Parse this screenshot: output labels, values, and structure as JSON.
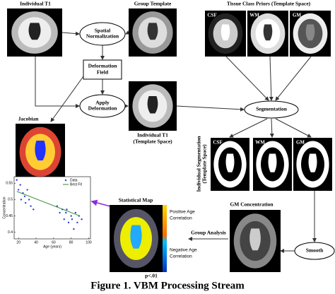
{
  "labels": {
    "individual_t1": "Individual T1",
    "group_template": "Group Template",
    "tissue_priors": "Tissue Class Priors (Template Space)",
    "spatial_normalization": [
      "Spatial",
      "Normalization"
    ],
    "deformation_field": [
      "Deformation",
      "Field"
    ],
    "apply_deformation": [
      "Apply",
      "Deformation"
    ],
    "jacobian": "Jacobian",
    "individual_t1_template": [
      "Individual T1",
      "(Template Space)"
    ],
    "segmentation": "Segmentation",
    "individual_segmentation": [
      "Individual Segmentation",
      "(Template Space)"
    ],
    "statistical_map": "Statistical Map",
    "positive": [
      "Positive Age",
      "Correlation"
    ],
    "negative": [
      "Negative Age",
      "Correlation"
    ],
    "p_value": "p<.01",
    "gm_concentration": "GM Concentration",
    "group_analysis": "Group Analysis",
    "smooth": "Smooth",
    "priors_classes": [
      "CSF",
      "WM",
      "GM"
    ],
    "seg_classes": [
      "CSF",
      "WM",
      "GM"
    ]
  },
  "caption": "Figure 1. VBM Processing Stream",
  "scatter": {
    "type": "scatter",
    "x_label": "Age (years)",
    "y_label": "Concentration",
    "xlim": [
      15,
      102
    ],
    "ylim": [
      0.38,
      0.57
    ],
    "xticks": [
      20,
      40,
      60,
      80,
      100
    ],
    "yticks": [
      0.4,
      0.45,
      0.5,
      0.55
    ],
    "series": [
      {
        "name": "Data",
        "color": "#2b3fd6",
        "x": [
          18,
          20,
          22,
          23,
          25,
          27,
          28,
          30,
          32,
          34,
          37,
          64,
          67,
          70,
          72,
          74,
          75,
          77,
          80,
          81,
          83,
          85,
          87,
          89,
          92
        ],
        "y": [
          0.56,
          0.53,
          0.545,
          0.5,
          0.52,
          0.51,
          0.49,
          0.53,
          0.5,
          0.48,
          0.47,
          0.48,
          0.46,
          0.47,
          0.44,
          0.46,
          0.47,
          0.43,
          0.45,
          0.44,
          0.41,
          0.46,
          0.43,
          0.45,
          0.44
        ]
      },
      {
        "name": "Best Fit",
        "color": "#2e8b2e",
        "x": [
          18,
          90
        ],
        "y": [
          0.525,
          0.45
        ]
      }
    ]
  }
}
